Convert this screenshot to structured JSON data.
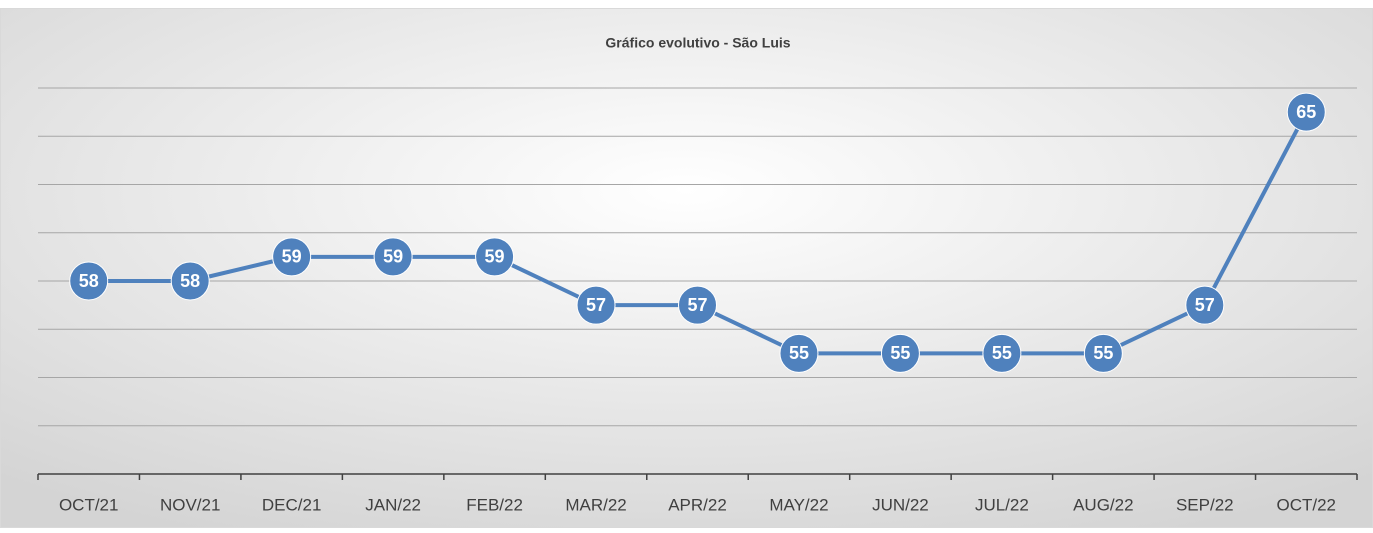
{
  "chart_data": {
    "type": "line",
    "title": "Gráfico evolutivo - São Luis",
    "categories": [
      "OCT/21",
      "NOV/21",
      "DEC/21",
      "JAN/22",
      "FEB/22",
      "MAR/22",
      "APR/22",
      "MAY/22",
      "JUN/22",
      "JUL/22",
      "AUG/22",
      "SEP/22",
      "OCT/22"
    ],
    "series": [
      {
        "name": "São Luis",
        "color": "#4f81bd",
        "values": [
          58,
          58,
          59,
          59,
          59,
          57,
          57,
          55,
          55,
          55,
          55,
          57,
          65
        ]
      }
    ],
    "ylim": [
      50,
      66
    ],
    "yticks": [
      52,
      54,
      56,
      58,
      60,
      62,
      64,
      66
    ],
    "grid": true
  }
}
